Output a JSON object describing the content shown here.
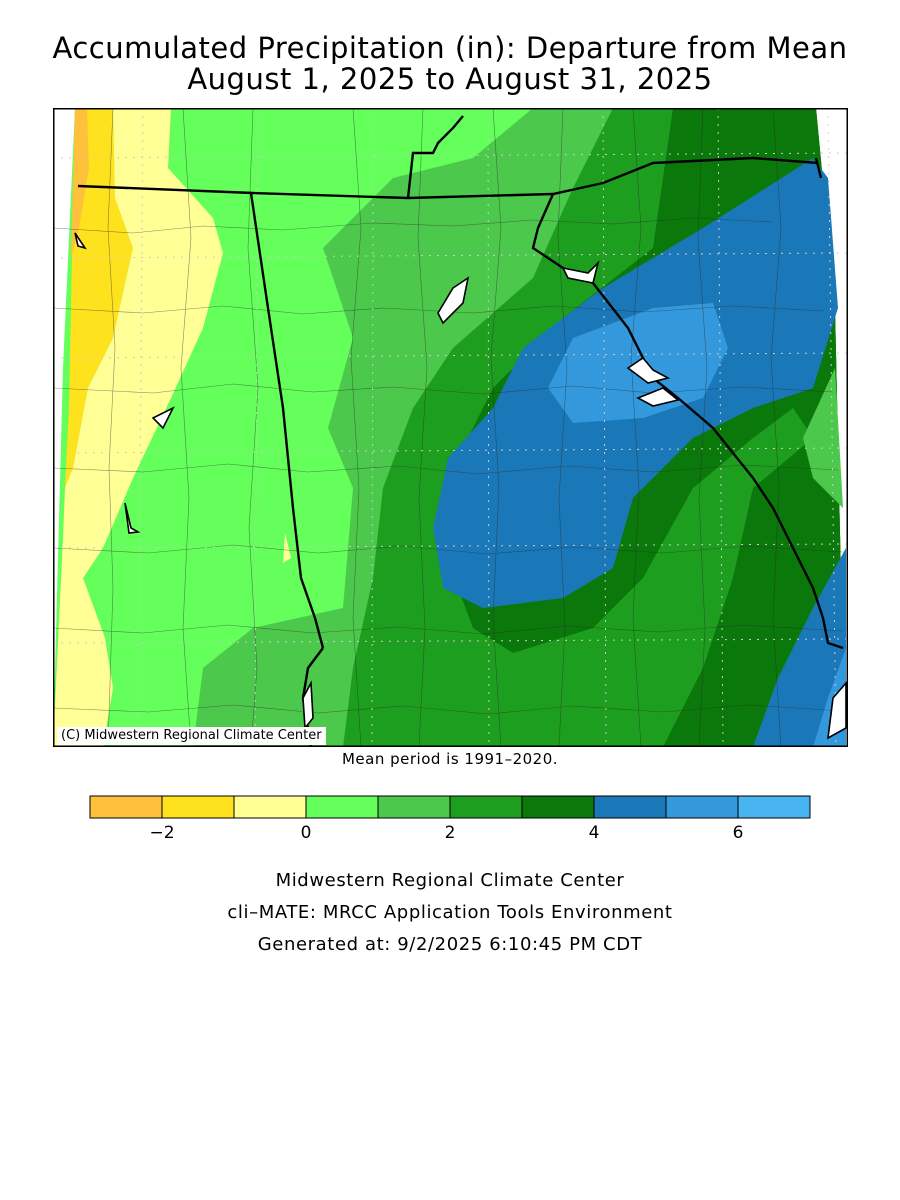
{
  "title_line1": "Accumulated Precipitation (in): Departure from Mean",
  "title_line2": "August 1, 2025 to August 31, 2025",
  "map": {
    "copyright": "(C) Midwestern Regional Climate Center",
    "colors": {
      "c_m3_m2": "#ffc03c",
      "c_m2_m1": "#ffe21e",
      "c_m1_0": "#ffff96",
      "c_0_1": "#64ff5a",
      "c_1_2": "#4cc84c",
      "c_2_3": "#1e9e1e",
      "c_3_4": "#0a780a",
      "c_4_5": "#1a78b8",
      "c_5_6": "#3498dc",
      "c_6_7": "#48b4f0"
    }
  },
  "mean_period_note": "Mean period is 1991–2020.",
  "legend": {
    "bins": [
      {
        "from": -3,
        "to": -2,
        "color": "#ffc03c"
      },
      {
        "from": -2,
        "to": -1,
        "color": "#ffe21e"
      },
      {
        "from": -1,
        "to": 0,
        "color": "#ffff96"
      },
      {
        "from": 0,
        "to": 1,
        "color": "#64ff5a"
      },
      {
        "from": 1,
        "to": 2,
        "color": "#4cc84c"
      },
      {
        "from": 2,
        "to": 3,
        "color": "#1e9e1e"
      },
      {
        "from": 3,
        "to": 4,
        "color": "#0a780a"
      },
      {
        "from": 4,
        "to": 5,
        "color": "#1a78b8"
      },
      {
        "from": 5,
        "to": 6,
        "color": "#3498dc"
      },
      {
        "from": 6,
        "to": 7,
        "color": "#48b4f0"
      }
    ],
    "tick_labels": [
      {
        "value": -2,
        "label": "−2"
      },
      {
        "value": 0,
        "label": "0"
      },
      {
        "value": 2,
        "label": "2"
      },
      {
        "value": 4,
        "label": "4"
      },
      {
        "value": 6,
        "label": "6"
      }
    ]
  },
  "footer": {
    "line1": "Midwestern Regional Climate Center",
    "line2": "cli–MATE: MRCC Application Tools Environment",
    "line3": "Generated at: 9/2/2025 6:10:45 PM CDT"
  }
}
